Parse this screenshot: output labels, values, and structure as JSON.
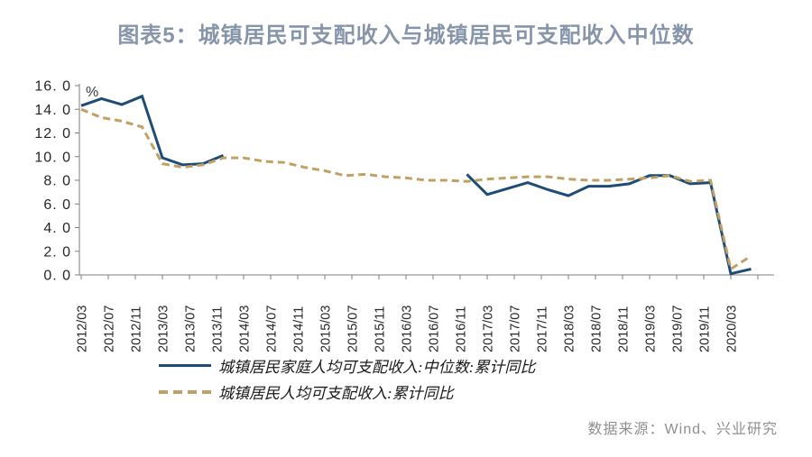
{
  "title": "图表5：城镇居民可支配收入与城镇居民可支配收入中位数",
  "unit_label": "%",
  "source": "数据来源：Wind、兴业研究",
  "legend": [
    {
      "label": "城镇居民家庭人均可支配收入:中位数:累计同比",
      "style": "solid",
      "color": "#1d4c77"
    },
    {
      "label": "城镇居民人均可支配收入:累计同比",
      "style": "dashed",
      "color": "#c1a063"
    }
  ],
  "colors": {
    "title": "#8795aa",
    "axis": "#7f7f7f",
    "tick_text": "#262626",
    "unit_text": "#3a3a3a",
    "source_text": "#8f8f8f",
    "background": "#ffffff",
    "median_line": "#1d4c77",
    "income_line": "#c1a063"
  },
  "chart_data": {
    "type": "line",
    "title": "图表5：城镇居民可支配收入与城镇居民可支配收入中位数",
    "xlabel": "",
    "ylabel": "%",
    "ylim": [
      0,
      16
    ],
    "y_tick_step": 2,
    "grid": false,
    "legend_position": "bottom-left",
    "y_tick_labels": [
      "0. 0",
      "2. 0",
      "4. 0",
      "6. 0",
      "8. 0",
      "10. 0",
      "12. 0",
      "14. 0",
      "16. 0"
    ],
    "x_tick_labels": [
      "2012/03",
      "2012/07",
      "2012/11",
      "2013/03",
      "2013/07",
      "2013/11",
      "2014/03",
      "2014/07",
      "2014/11",
      "2015/03",
      "2015/07",
      "2015/11",
      "2016/03",
      "2016/07",
      "2016/11",
      "2017/03",
      "2017/07",
      "2017/11",
      "2018/03",
      "2018/07",
      "2018/11",
      "2019/03",
      "2019/07",
      "2019/11",
      "2020/03"
    ],
    "x": [
      "2012/03",
      "2012/06",
      "2012/09",
      "2012/12",
      "2013/03",
      "2013/06",
      "2013/09",
      "2013/12",
      "2014/03",
      "2014/06",
      "2014/09",
      "2014/12",
      "2015/03",
      "2015/06",
      "2015/09",
      "2015/12",
      "2016/03",
      "2016/06",
      "2016/09",
      "2016/12",
      "2017/03",
      "2017/06",
      "2017/09",
      "2017/12",
      "2018/03",
      "2018/06",
      "2018/09",
      "2018/12",
      "2019/03",
      "2019/06",
      "2019/09",
      "2019/12",
      "2020/03",
      "2020/06"
    ],
    "series": [
      {
        "id": "median",
        "name": "城镇居民家庭人均可支配收入:中位数:累计同比",
        "color": "#1d4c77",
        "dash": false,
        "values": [
          14.3,
          14.9,
          14.4,
          15.1,
          9.9,
          9.3,
          9.4,
          10.1,
          null,
          null,
          null,
          null,
          null,
          null,
          null,
          null,
          null,
          null,
          null,
          8.5,
          6.8,
          7.3,
          7.8,
          7.2,
          6.7,
          7.5,
          7.5,
          7.7,
          8.4,
          8.4,
          7.7,
          7.8,
          0.1,
          0.5
        ]
      },
      {
        "id": "income",
        "name": "城镇居民人均可支配收入:累计同比",
        "color": "#c1a063",
        "dash": true,
        "values": [
          14.0,
          13.3,
          13.0,
          12.5,
          9.4,
          9.1,
          9.3,
          9.9,
          9.9,
          9.6,
          9.5,
          9.1,
          8.8,
          8.4,
          8.5,
          8.3,
          8.2,
          8.0,
          8.0,
          7.9,
          8.1,
          8.2,
          8.3,
          8.3,
          8.1,
          8.0,
          8.0,
          8.1,
          8.2,
          8.4,
          7.9,
          8.0,
          0.5,
          1.6
        ]
      }
    ]
  }
}
